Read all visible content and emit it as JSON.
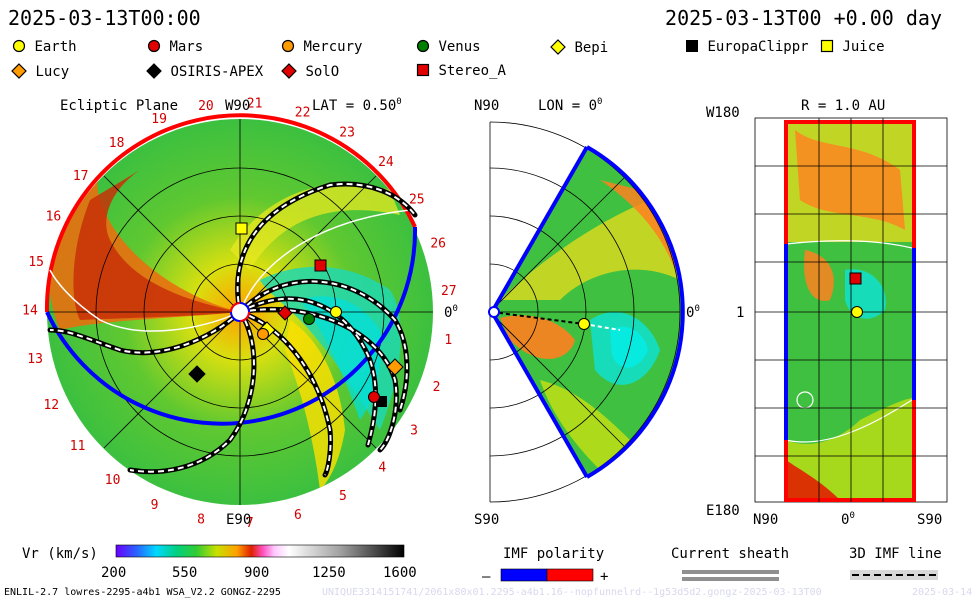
{
  "header": {
    "left_timestamp": "2025-03-13T00:00",
    "right_timestamp": "2025-03-13T00 +0.00 day"
  },
  "legend": [
    {
      "name": "Earth",
      "shape": "circle",
      "color": "#ffff00"
    },
    {
      "name": "Mars",
      "shape": "circle",
      "color": "#e00000"
    },
    {
      "name": "Mercury",
      "shape": "circle",
      "color": "#ff9a00"
    },
    {
      "name": "Venus",
      "shape": "circle",
      "color": "#008000"
    },
    {
      "name": "Bepi",
      "shape": "diamond",
      "color": "#ffff00"
    },
    {
      "name": "EuropaClippr",
      "shape": "square",
      "color": "#000000"
    },
    {
      "name": "Juice",
      "shape": "square",
      "color": "#ffff00"
    },
    {
      "name": "Lucy",
      "shape": "diamond",
      "color": "#ff9a00"
    },
    {
      "name": "OSIRIS-APEX",
      "shape": "diamond",
      "color": "#000000"
    },
    {
      "name": "SolO",
      "shape": "diamond",
      "color": "#e00000"
    },
    {
      "name": "Stereo_A",
      "shape": "square",
      "color": "#e00000"
    }
  ],
  "ecliptic": {
    "title": "Ecliptic Plane",
    "top_label": "W90",
    "lat_label": "LAT = 0.50",
    "lat_sup": "0",
    "bottom_label": "E90",
    "right_label": "0",
    "right_sup": "0",
    "sectors": [
      "1",
      "2",
      "3",
      "4",
      "5",
      "6",
      "7",
      "8",
      "9",
      "10",
      "11",
      "12",
      "13",
      "14",
      "15",
      "16",
      "17",
      "18",
      "19",
      "20",
      "21",
      "22",
      "23",
      "24",
      "25",
      "26",
      "27"
    ]
  },
  "meridional": {
    "top_label": "N90",
    "lon_label": "LON = 0",
    "lon_sup": "0",
    "bottom_label": "S90",
    "right_label": "0",
    "right_sup": "0"
  },
  "radial": {
    "top_label": "R = 1.0 AU",
    "left_top": "W180",
    "left_mid": "1",
    "left_bottom": "E180",
    "bottom_left": "N90",
    "bottom_mid": "0",
    "bottom_mid_sup": "0",
    "bottom_right": "S90"
  },
  "colorbar": {
    "label": "Vr (km/s)",
    "ticks": [
      "200",
      "550",
      "900",
      "1250",
      "1600"
    ],
    "colors": {
      "low": "#6a00ff",
      "mid": "#33cc33",
      "high": "#000000"
    }
  },
  "imf": {
    "label": "IMF polarity",
    "minus": "–",
    "plus": "+",
    "colors": {
      "negative": "#0000ff",
      "positive": "#ff0000"
    }
  },
  "sheath": {
    "label": "Current sheath"
  },
  "imf3d": {
    "label": "3D IMF line"
  },
  "footer": {
    "left": "ENLIL-2.7 lowres-2295-a4b1 WSA_V2.2 GONGZ-2295",
    "right": "UNIQUE3314151741/2061x80x01.2295-a4b1.16--nopfunnelrd--1g53d5d2.gongz-2025-03-13T00",
    "far_right": "2025-03-14"
  },
  "chart_data": [
    {
      "type": "heatmap",
      "title": "Ecliptic Plane",
      "bodies": [
        "Earth",
        "Mars",
        "Mercury",
        "Venus",
        "Bepi",
        "EuropaClippr",
        "Juice",
        "Lucy",
        "OSIRIS-APEX",
        "SolO",
        "Stereo_A"
      ]
    },
    {
      "type": "heatmap",
      "title": "LON = 0",
      "bodies": [
        "Earth"
      ]
    },
    {
      "type": "heatmap",
      "title": "R = 1.0 AU",
      "x_ticks": [
        "N90",
        "0",
        "S90"
      ],
      "y_ticks": [
        "W180",
        "1",
        "E180"
      ],
      "bodies": [
        "Earth",
        "Stereo_A"
      ]
    }
  ]
}
